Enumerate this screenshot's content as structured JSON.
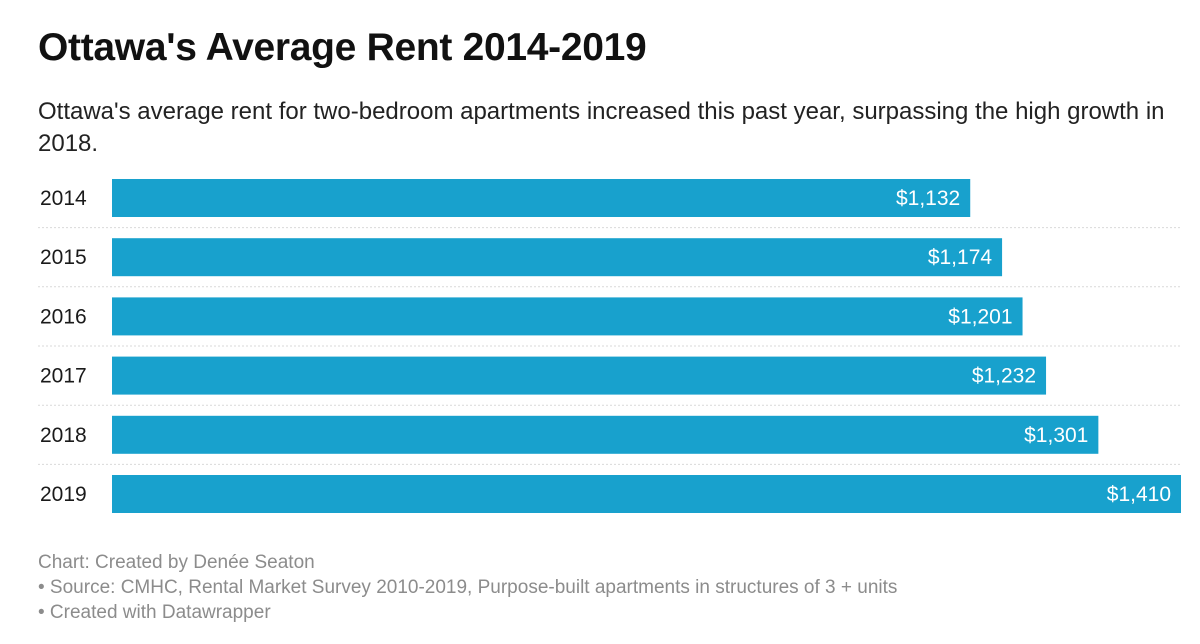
{
  "header": {
    "title": "Ottawa's Average Rent 2014-2019",
    "subtitle": "Ottawa's average rent for two-bedroom apartments increased this past year, surpassing the high growth in 2018."
  },
  "chart_data": {
    "type": "bar",
    "orientation": "horizontal",
    "categories": [
      "2014",
      "2015",
      "2016",
      "2017",
      "2018",
      "2019"
    ],
    "values": [
      1132,
      1174,
      1201,
      1232,
      1301,
      1410
    ],
    "value_labels": [
      "$1,132",
      "$1,174",
      "$1,201",
      "$1,232",
      "$1,301",
      "$1,410"
    ],
    "xlim": [
      0,
      1410
    ],
    "bar_color": "#18a1cd",
    "label_color": "#ffffff",
    "row_divider_color": "#d9d9d9",
    "grid": false,
    "legend": "none"
  },
  "footer": {
    "credit": "Chart: Created by Denée Seaton",
    "source": "• Source: CMHC, Rental Market Survey 2010-2019, Purpose-built apartments in structures of 3 + units",
    "tool": "• Created with Datawrapper"
  }
}
